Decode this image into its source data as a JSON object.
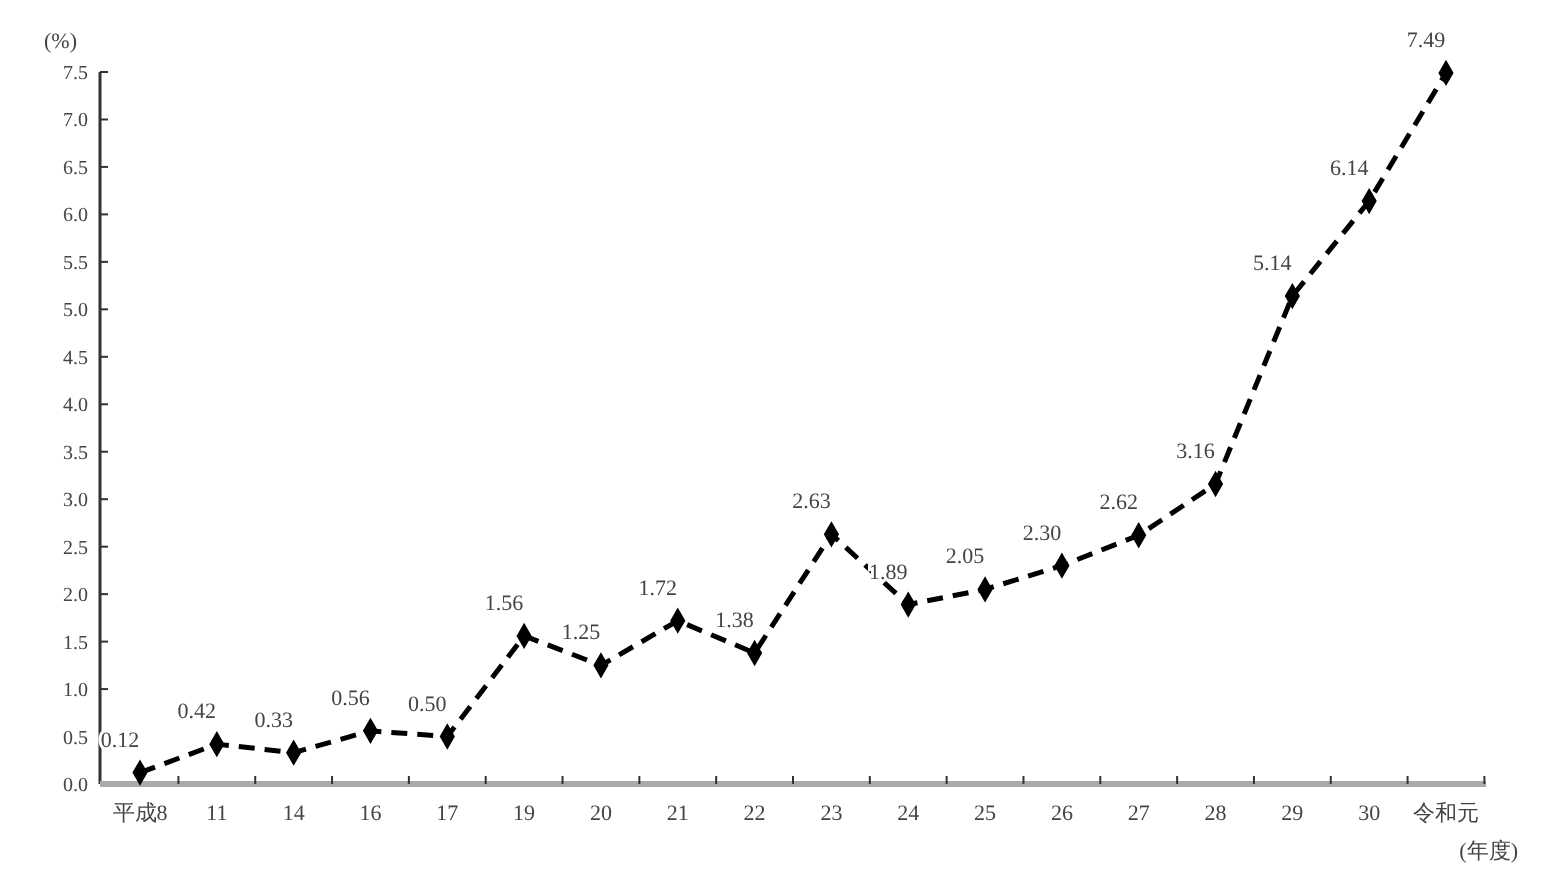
{
  "chart_data": {
    "type": "line",
    "ylabel": "(%)",
    "xlabel": "(年度)",
    "categories": [
      "平成8",
      "11",
      "14",
      "16",
      "17",
      "19",
      "20",
      "21",
      "22",
      "23",
      "24",
      "25",
      "26",
      "27",
      "28",
      "29",
      "30",
      "令和元"
    ],
    "series": [
      {
        "color": "#000000",
        "values": [
          0.12,
          0.42,
          0.33,
          0.56,
          0.5,
          1.56,
          1.25,
          1.72,
          1.38,
          2.63,
          1.89,
          2.05,
          2.3,
          2.62,
          3.16,
          5.14,
          6.14,
          7.49
        ],
        "value_labels": [
          "0.12",
          "0.42",
          "0.33",
          "0.56",
          "0.50",
          "1.56",
          "1.25",
          "1.72",
          "1.38",
          "2.63",
          "1.89",
          "2.05",
          "2.30",
          "2.62",
          "3.16",
          "5.14",
          "6.14",
          "7.49"
        ]
      }
    ],
    "ylim": [
      0,
      7.5
    ],
    "yticks": [
      {
        "value": 0,
        "label": "0.0"
      },
      {
        "value": 0.5,
        "label": "0.5"
      },
      {
        "value": 1,
        "label": "1.0"
      },
      {
        "value": 1.5,
        "label": "1.5"
      },
      {
        "value": 2,
        "label": "2.0"
      },
      {
        "value": 2.5,
        "label": "2.5"
      },
      {
        "value": 3,
        "label": "3.0"
      },
      {
        "value": 3.5,
        "label": "3.5"
      },
      {
        "value": 4,
        "label": "4.0"
      },
      {
        "value": 4.5,
        "label": "4.5"
      },
      {
        "value": 5,
        "label": "5.0"
      },
      {
        "value": 5.5,
        "label": "5.5"
      },
      {
        "value": 6,
        "label": "6.0"
      },
      {
        "value": 6.5,
        "label": "6.5"
      },
      {
        "value": 7,
        "label": "7.0"
      },
      {
        "value": 7.5,
        "label": "7.5"
      }
    ],
    "grid": false,
    "marker": "diamond",
    "line_style": "dashed"
  }
}
